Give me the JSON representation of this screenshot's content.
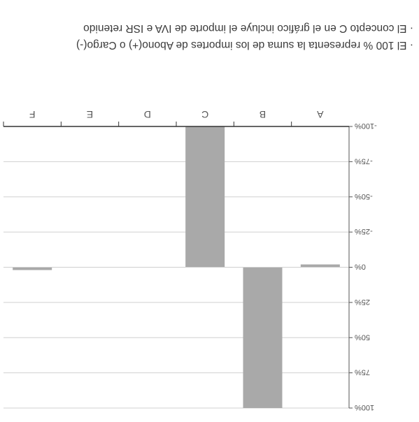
{
  "chart_data": {
    "type": "bar",
    "categories": [
      "A",
      "B",
      "C",
      "D",
      "E",
      "F"
    ],
    "values": [
      -2,
      100,
      -100,
      0,
      0,
      2
    ],
    "ylim": [
      -100,
      100
    ],
    "yticks": [
      -100,
      -75,
      -50,
      -25,
      0,
      25,
      50,
      75,
      100
    ],
    "ytick_labels": [
      "-100%",
      "-75%",
      "-50%",
      "-25%",
      "0%",
      "25%",
      "50%",
      "75%",
      "100%"
    ],
    "grid": true,
    "bar_color": "#a9a9a9",
    "axis_color": "#555555",
    "grid_color": "#d0d0d0"
  },
  "notes": [
    "· El 100 % representa la suma de los importes de Abono(+) o Cargo(-)",
    "· El concepto C en el gráfico incluye el importe de IVA e ISR retenido"
  ]
}
